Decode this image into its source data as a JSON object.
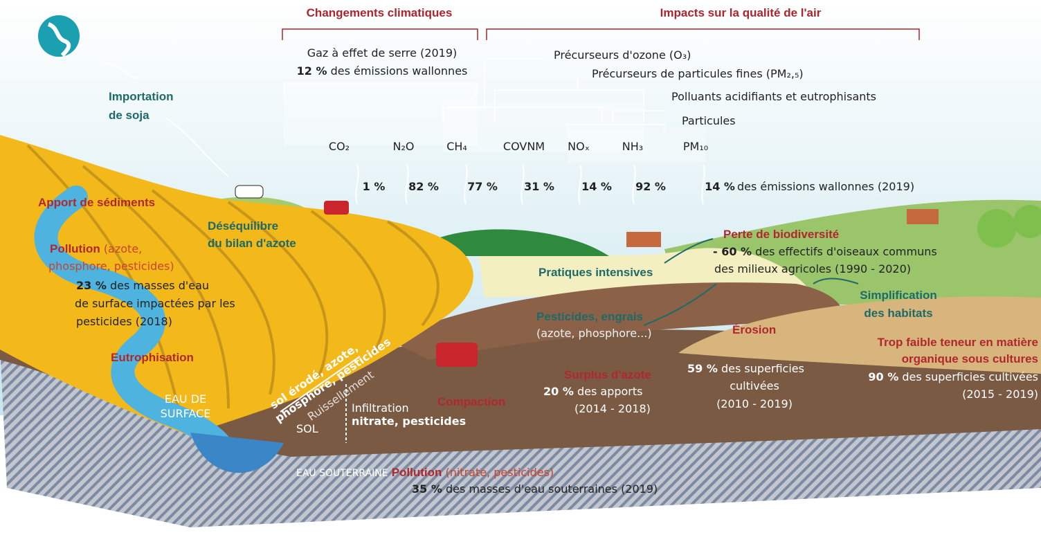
{
  "header": {
    "climate": "Changements climatiques",
    "air": "Impacts sur la qualité de l'air"
  },
  "ghg": {
    "title": "Gaz à effet de serre (2019)",
    "share": "12 %",
    "text": "des émissions wallonnes"
  },
  "air_groups": [
    "Précurseurs d'ozone (O₃)",
    "Précurseurs de particules fines (PM₂,₅)",
    "Polluants acidifiants et eutrophisants",
    "Particules"
  ],
  "pollutants": [
    {
      "name": "CO₂",
      "share": "1 %"
    },
    {
      "name": "N₂O",
      "share": "82 %"
    },
    {
      "name": "CH₄",
      "share": "77 %"
    },
    {
      "name": "COVNM",
      "share": "31 %"
    },
    {
      "name": "NOₓ",
      "share": "14 %"
    },
    {
      "name": "NH₃",
      "share": "92 %"
    },
    {
      "name": "PM₁₀",
      "share": "14 %"
    }
  ],
  "pm_note": "des émissions wallonnes (2019)",
  "soja": [
    "Importation",
    "de soja"
  ],
  "sediments": "Apport de sédiments",
  "surface_pollution": {
    "title": "Pollution",
    "detail": [
      "(azote,",
      "phosphore, pesticides)"
    ],
    "share": "23 %",
    "text": [
      "des masses d'eau",
      "de surface impactées par les",
      "pesticides (2018)"
    ]
  },
  "eutrophisation": "Eutrophisation",
  "surface_water": [
    "EAU DE",
    "SURFACE"
  ],
  "runoff_load": [
    "sol érodé, azote,",
    "phosphore, pesticides"
  ],
  "runoff": "Ruissellement",
  "soil": "SOL",
  "infiltration": {
    "title": "Infiltration",
    "load": "nitrate, pesticides"
  },
  "compaction": "Compaction",
  "nitrogen_balance": [
    "Déséquilibre",
    "du bilan d'azote"
  ],
  "intensive": "Pratiques intensives",
  "inputs": {
    "title": "Pesticides, engrais",
    "detail": "(azote, phosphore...)"
  },
  "nitrogen_surplus": {
    "title": "Surplus d'azote",
    "share": "20 %",
    "text": "des apports",
    "period": "(2014 - 2018)"
  },
  "erosion": {
    "title": "Érosion",
    "share": "59 %",
    "text": [
      "des superficies",
      "cultivées"
    ],
    "period": "(2010 - 2019)"
  },
  "biodiversity": {
    "title": "Perte de biodiversité",
    "share": "- 60 %",
    "text": [
      "des effectifs d'oiseaux communs",
      "des milieux agricoles (1990 - 2020)"
    ]
  },
  "habitats": [
    "Simplification",
    "des habitats"
  ],
  "organic": {
    "title": [
      "Trop faible teneur en matière",
      "organique sous cultures"
    ],
    "share": "90 %",
    "text": "des superficies cultivées",
    "period": "(2015 - 2019)"
  },
  "groundwater": {
    "label": "EAU SOUTERRAINE",
    "title": "Pollution",
    "detail": "(nitrate, pesticides)",
    "share": "35 %",
    "text": "des masses d'eau souterraines (2019)"
  }
}
